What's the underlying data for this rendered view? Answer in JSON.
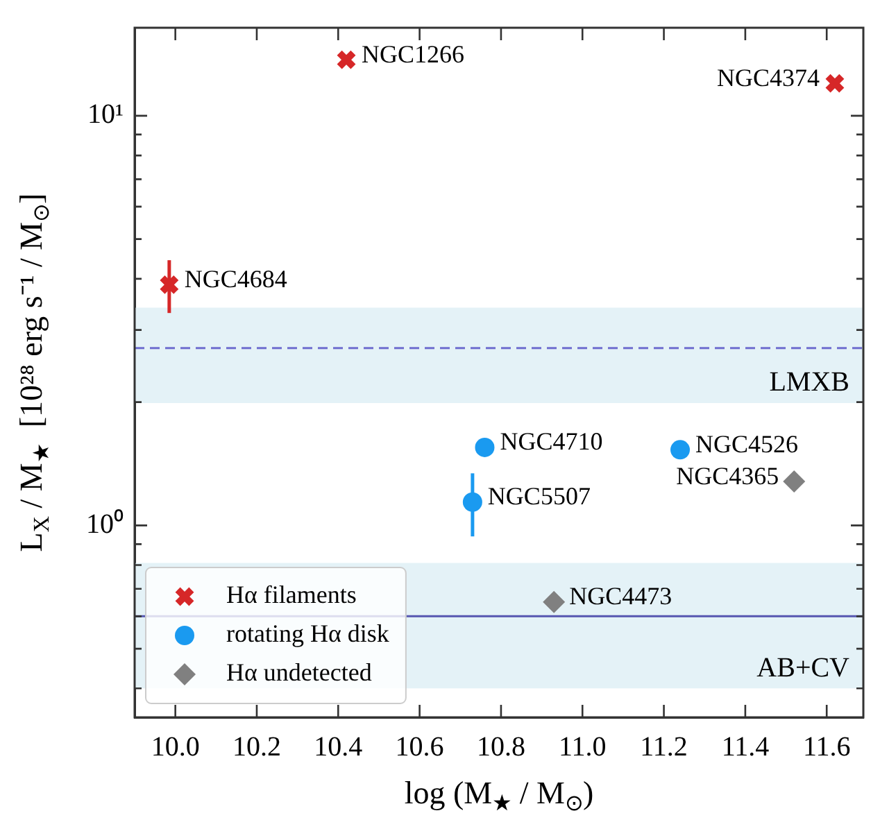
{
  "chart_data": {
    "type": "scatter",
    "xlabel": "log (M$_{★}$ / M$_{⊙}$)",
    "ylabel": "L$_{X}$ / M$_{★}$  [10²⁸ erg s⁻¹ / M$_{⊙}$]",
    "log": "y",
    "xlim": [
      9.9,
      11.69
    ],
    "ylim": [
      0.34,
      16.4
    ],
    "xticks": [
      {
        "value": 10.0,
        "label": "10.0"
      },
      {
        "value": 10.2,
        "label": "10.2"
      },
      {
        "value": 10.4,
        "label": "10.4"
      },
      {
        "value": 10.6,
        "label": "10.6"
      },
      {
        "value": 10.8,
        "label": "10.8"
      },
      {
        "value": 11.0,
        "label": "11.0"
      },
      {
        "value": 11.2,
        "label": "11.2"
      },
      {
        "value": 11.4,
        "label": "11.4"
      },
      {
        "value": 11.6,
        "label": "11.6"
      }
    ],
    "yticks": [
      {
        "value": 0.4,
        "label": null
      },
      {
        "value": 0.5,
        "label": null
      },
      {
        "value": 0.6,
        "label": null
      },
      {
        "value": 0.7,
        "label": null
      },
      {
        "value": 0.8,
        "label": null
      },
      {
        "value": 0.9,
        "label": null
      },
      {
        "value": 1,
        "label": "10⁰"
      },
      {
        "value": 2,
        "label": null
      },
      {
        "value": 3,
        "label": null
      },
      {
        "value": 4,
        "label": null
      },
      {
        "value": 5,
        "label": null
      },
      {
        "value": 6,
        "label": null
      },
      {
        "value": 7,
        "label": null
      },
      {
        "value": 8,
        "label": null
      },
      {
        "value": 9,
        "label": null
      },
      {
        "value": 10,
        "label": "10¹"
      }
    ],
    "legend": "bottom left",
    "series": [
      {
        "name": "Hα filaments",
        "color": "#d62728",
        "marker": "cross",
        "x": [
          10.42,
          11.62,
          9.985
        ],
        "values": [
          13.7,
          12.0,
          3.87
        ],
        "errors": [
          null,
          null,
          [
            3.3,
            4.44
          ]
        ]
      },
      {
        "name": "rotating Hα disk",
        "color": "#1a9af0",
        "marker": "circle",
        "x": [
          10.76,
          11.24,
          10.73
        ],
        "values": [
          1.55,
          1.53,
          1.14
        ],
        "errors": [
          null,
          null,
          [
            0.94,
            1.34
          ]
        ]
      },
      {
        "name": "Hα undetected",
        "color": "#808080",
        "marker": "diamond",
        "x": [
          11.52,
          10.93
        ],
        "values": [
          1.28,
          0.65
        ]
      }
    ],
    "bands": [
      {
        "axis": "y",
        "from": 1.99,
        "to": 3.4,
        "label": "LMXB",
        "color": "#e4f2f7"
      },
      {
        "axis": "y",
        "from": 0.4,
        "to": 0.81,
        "label": "AB+CV",
        "color": "#e4f2f7"
      }
    ],
    "ref_lines": [
      {
        "axis": "y",
        "value": 2.71,
        "color": "#6f6fd0",
        "line_style": "dashed"
      },
      {
        "axis": "y",
        "value": 0.6,
        "color": "#5656b0",
        "line_style": "solid"
      }
    ],
    "annotations": [
      {
        "text": "NGC1266",
        "x": 10.42,
        "y": 13.7
      },
      {
        "text": "NGC4374",
        "x": 11.62,
        "y": 12.0
      },
      {
        "text": "NGC4684",
        "x": 9.985,
        "y": 3.87
      },
      {
        "text": "NGC4710",
        "x": 10.76,
        "y": 1.55
      },
      {
        "text": "NGC4526",
        "x": 11.24,
        "y": 1.53
      },
      {
        "text": "NGC5507",
        "x": 10.73,
        "y": 1.14
      },
      {
        "text": "NGC4365",
        "x": 11.52,
        "y": 1.28
      },
      {
        "text": "NGC4473",
        "x": 10.93,
        "y": 0.65
      }
    ]
  }
}
